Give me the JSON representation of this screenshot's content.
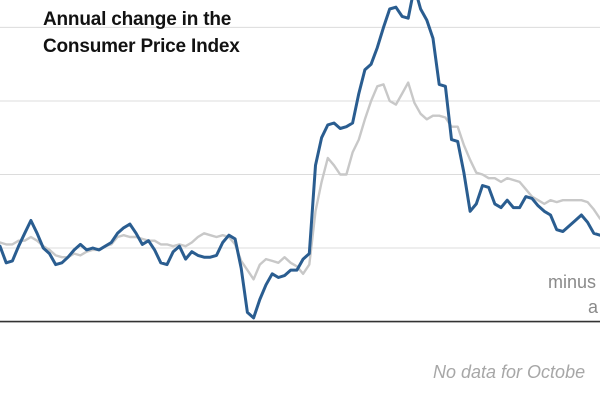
{
  "title_lines": [
    "Annual change in the",
    "Consumer Price Index"
  ],
  "annotations": [
    "minus",
    "a"
  ],
  "footnote": "No data for Octobe",
  "colors": {
    "headline": "#2a5d90",
    "core": "#c8c8c8",
    "grid": "#dcdcdc",
    "axis": "#333333"
  },
  "chart_data": {
    "type": "line",
    "ylim": [
      -0.12,
      8.8
    ],
    "grid_values": [
      0,
      2,
      4,
      6,
      8
    ],
    "grid": true,
    "series": [
      {
        "key": "headline",
        "values": [
          2.05,
          1.6,
          1.65,
          2.05,
          2.4,
          2.75,
          2.4,
          2.0,
          1.85,
          1.55,
          1.6,
          1.75,
          1.95,
          2.1,
          1.95,
          2.0,
          1.95,
          2.05,
          2.15,
          2.4,
          2.55,
          2.65,
          2.4,
          2.1,
          2.2,
          1.95,
          1.6,
          1.55,
          1.9,
          2.05,
          1.7,
          1.9,
          1.8,
          1.75,
          1.75,
          1.8,
          2.15,
          2.35,
          2.25,
          1.45,
          0.25,
          0.1,
          0.6,
          1.0,
          1.3,
          1.2,
          1.25,
          1.4,
          1.4,
          1.7,
          1.85,
          4.25,
          5.0,
          5.35,
          5.4,
          5.25,
          5.3,
          5.4,
          6.2,
          6.85,
          7.0,
          7.45,
          8.0,
          8.5,
          8.55,
          8.3,
          8.25,
          9.1,
          8.5,
          8.2,
          7.7,
          6.45,
          6.4,
          4.95,
          4.9,
          4.05,
          3.0,
          3.2,
          3.7,
          3.65,
          3.2,
          3.1,
          3.3,
          3.1,
          3.1,
          3.4,
          3.35,
          3.15,
          3.0,
          2.9,
          2.5,
          2.45,
          2.6,
          2.75,
          2.9,
          2.7,
          2.4,
          2.35
        ]
      },
      {
        "key": "core",
        "values": [
          2.15,
          2.1,
          2.1,
          2.2,
          2.2,
          2.3,
          2.2,
          2.05,
          1.95,
          1.8,
          1.75,
          1.75,
          1.85,
          1.8,
          1.9,
          1.95,
          1.95,
          2.05,
          2.1,
          2.3,
          2.35,
          2.3,
          2.3,
          2.25,
          2.2,
          2.2,
          2.1,
          2.1,
          2.05,
          2.1,
          2.05,
          2.15,
          2.3,
          2.4,
          2.35,
          2.3,
          2.35,
          2.3,
          2.1,
          1.65,
          1.4,
          1.15,
          1.55,
          1.7,
          1.65,
          1.6,
          1.75,
          1.6,
          1.5,
          1.3,
          1.55,
          3.0,
          3.8,
          4.45,
          4.25,
          4.0,
          4.0,
          4.6,
          4.95,
          5.5,
          6.0,
          6.4,
          6.45,
          6.0,
          5.9,
          6.2,
          6.5,
          5.95,
          5.65,
          5.5,
          5.6,
          5.6,
          5.55,
          5.3,
          5.3,
          4.8,
          4.4,
          4.05,
          4.0,
          3.9,
          3.9,
          3.8,
          3.9,
          3.85,
          3.8,
          3.6,
          3.4,
          3.3,
          3.2,
          3.3,
          3.25,
          3.3,
          3.3,
          3.3,
          3.3,
          3.25,
          3.05,
          2.8
        ]
      }
    ]
  }
}
